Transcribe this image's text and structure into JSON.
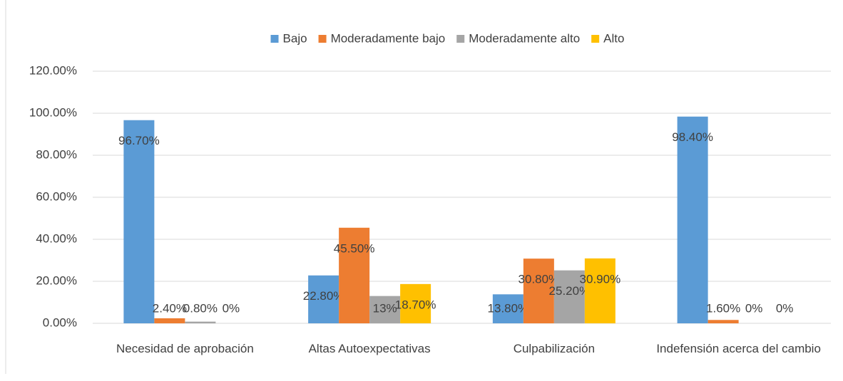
{
  "chart_data": {
    "type": "bar",
    "categories": [
      "Necesidad de aprobación",
      "Altas Autoexpectativas",
      "Culpabilización",
      "Indefensión acerca del cambio"
    ],
    "series": [
      {
        "name": "Bajo",
        "color": "#5b9bd5",
        "values": [
          96.7,
          22.8,
          13.8,
          98.4
        ],
        "value_labels": [
          "96.70%",
          "22.80%",
          "13.80%",
          "98.40%"
        ]
      },
      {
        "name": "Moderadamente bajo",
        "color": "#ed7d31",
        "values": [
          2.4,
          45.5,
          30.8,
          1.6
        ],
        "value_labels": [
          "2.40%",
          "45.50%",
          "30.80%",
          "1.60%"
        ]
      },
      {
        "name": "Moderadamente alto",
        "color": "#a5a5a5",
        "values": [
          0.8,
          13,
          25.2,
          0
        ],
        "value_labels": [
          "0.80%",
          "13%",
          "25.20%",
          "0%"
        ]
      },
      {
        "name": "Alto",
        "color": "#ffc000",
        "values": [
          0,
          18.7,
          30.9,
          0
        ],
        "value_labels": [
          "0%",
          "18.70%",
          "30.90%",
          "0%"
        ]
      }
    ],
    "ylim": [
      0,
      120
    ],
    "yticks": [
      {
        "value": 0,
        "label": "0.00%"
      },
      {
        "value": 20,
        "label": "20.00%"
      },
      {
        "value": 40,
        "label": "40.00%"
      },
      {
        "value": 60,
        "label": "60.00%"
      },
      {
        "value": 80,
        "label": "80.00%"
      },
      {
        "value": 100,
        "label": "100.00%"
      },
      {
        "value": 120,
        "label": "120.00%"
      }
    ],
    "grid": true,
    "legend": "top"
  }
}
